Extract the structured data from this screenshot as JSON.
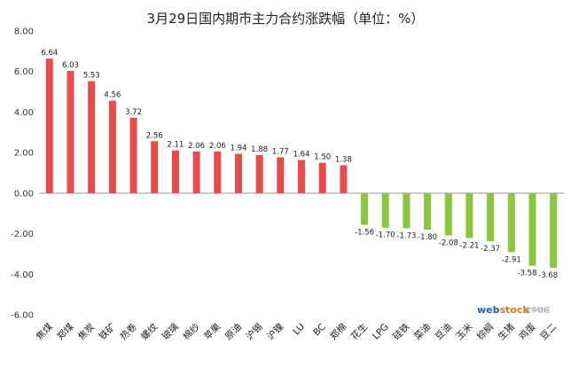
{
  "chart_data": {
    "type": "bar",
    "title": "3月29日国内期市主力合约涨跌幅（单位：%）",
    "xlabel": "",
    "ylabel": "",
    "ylim": [
      -6.0,
      8.0
    ],
    "yticks": [
      8.0,
      6.0,
      4.0,
      2.0,
      0.0,
      -2.0,
      -4.0,
      -6.0
    ],
    "ytick_labels": [
      "8.00",
      "6.00",
      "4.00",
      "2.00",
      "0.00",
      "-2.00",
      "-4.00",
      "-6.00"
    ],
    "categories": [
      "焦煤",
      "郑煤",
      "焦炭",
      "铁矿",
      "热卷",
      "螺纹",
      "玻璃",
      "棉纱",
      "苹果",
      "原油",
      "沪锡",
      "沪镍",
      "LU",
      "BC",
      "郑棉",
      "花生",
      "LPG",
      "硅铁",
      "菜油",
      "豆油",
      "玉米",
      "棕榈",
      "生猪",
      "鸡蛋",
      "豆二"
    ],
    "values": [
      6.64,
      6.03,
      5.53,
      4.56,
      3.72,
      2.56,
      2.11,
      2.06,
      2.06,
      1.94,
      1.88,
      1.77,
      1.64,
      1.5,
      1.38,
      -1.56,
      -1.7,
      -1.73,
      -1.8,
      -2.08,
      -2.21,
      -2.37,
      -2.91,
      -3.58,
      -3.68
    ],
    "value_labels": [
      "6.64",
      "6.03",
      "5.53",
      "4.56",
      "3.72",
      "2.56",
      "2.11",
      "2.06",
      "2.06",
      "1.94",
      "1.88",
      "1.77",
      "1.64",
      "1.50",
      "1.38",
      "-1.56",
      "-1.70",
      "-1.73",
      "-1.80",
      "-2.08",
      "-2.21",
      "-2.37",
      "-2.91",
      "-3.58",
      "-3.68"
    ],
    "grid": false,
    "legend": "none"
  },
  "colors": {
    "positive": "#e84b4b",
    "negative": "#8cc63f",
    "axis": "#999999"
  },
  "watermark": {
    "part1": "web",
    "part2": "stock",
    "subtitle": "文华财经"
  }
}
